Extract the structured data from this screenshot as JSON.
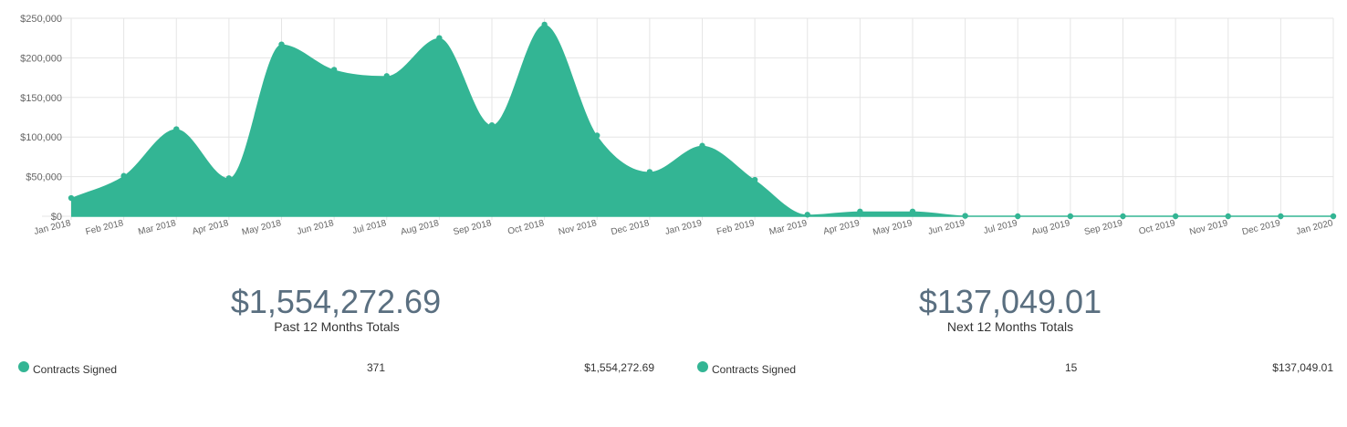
{
  "colors": {
    "area": "#33b594",
    "grid": "#e5e5e5",
    "axis_text": "#666666",
    "total_text": "#5a6f80"
  },
  "chart_data": {
    "type": "area",
    "x": [
      "Jan 2018",
      "Feb 2018",
      "Mar 2018",
      "Apr 2018",
      "May 2018",
      "Jun 2018",
      "Jul 2018",
      "Aug 2018",
      "Sep 2018",
      "Oct 2018",
      "Nov 2018",
      "Dec 2018",
      "Jan 2019",
      "Feb 2019",
      "Mar 2019",
      "Apr 2019",
      "May 2019",
      "Jun 2019",
      "Jul 2019",
      "Aug 2019",
      "Sep 2019",
      "Oct 2019",
      "Nov 2019",
      "Dec 2019",
      "Jan 2020"
    ],
    "series": [
      {
        "values": [
          23000,
          51000,
          110000,
          48000,
          217000,
          185000,
          177000,
          225000,
          115000,
          242000,
          102000,
          56000,
          89000,
          46000,
          2000,
          6000,
          6000,
          500,
          0,
          0,
          0,
          0,
          0,
          0,
          0
        ]
      }
    ],
    "y_ticks": [
      "$0",
      "$50,000",
      "$100,000",
      "$150,000",
      "$200,000",
      "$250,000"
    ],
    "ylim": [
      0,
      250000
    ],
    "grid": true
  },
  "summary": {
    "past": {
      "total": "$1,554,272.69",
      "label": "Past 12 Months Totals",
      "row": {
        "label": "Contracts Signed",
        "count": "371",
        "amount": "$1,554,272.69"
      }
    },
    "next": {
      "total": "$137,049.01",
      "label": "Next 12 Months Totals",
      "row": {
        "label": "Contracts Signed",
        "count": "15",
        "amount": "$137,049.01"
      }
    }
  }
}
